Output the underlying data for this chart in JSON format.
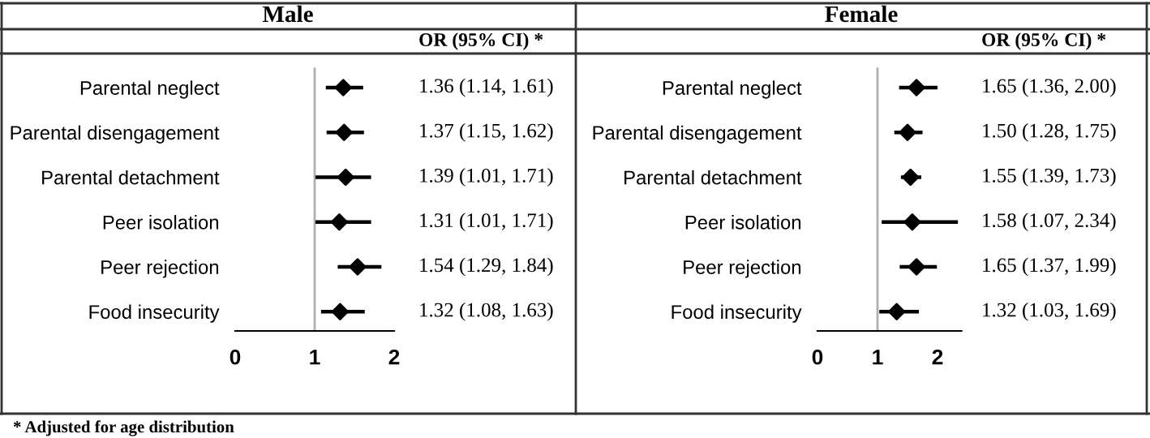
{
  "chart_data": [
    {
      "type": "scatter",
      "title": "Male",
      "orientation": "horizontal",
      "categories": [
        "Parental neglect",
        "Parental disengagement",
        "Parental detachment",
        "Peer isolation",
        "Peer rejection",
        "Food insecurity"
      ],
      "values": [
        1.36,
        1.37,
        1.39,
        1.31,
        1.54,
        1.32
      ],
      "errors": [
        [
          1.14,
          1.61
        ],
        [
          1.15,
          1.62
        ],
        [
          1.01,
          1.71
        ],
        [
          1.01,
          1.71
        ],
        [
          1.29,
          1.84
        ],
        [
          1.08,
          1.63
        ]
      ],
      "value_labels": [
        "1.36 (1.14, 1.61)",
        "1.37 (1.15, 1.62)",
        "1.39 (1.01, 1.71)",
        "1.31 (1.01, 1.71)",
        "1.54 (1.29, 1.84)",
        "1.32 (1.08, 1.63)"
      ],
      "color": "#000000",
      "marker": "diamond",
      "xlim": [
        0,
        2
      ],
      "xticks": [
        0,
        1,
        2
      ],
      "ref_lines": [
        {
          "axis": "x",
          "value": 1,
          "color": "#b0b0b0"
        }
      ],
      "grid": false,
      "annotations": [
        "OR (95% CI) *",
        "* Adjusted for age distribution"
      ]
    },
    {
      "type": "scatter",
      "title": "Female",
      "orientation": "horizontal",
      "categories": [
        "Parental neglect",
        "Parental disengagement",
        "Parental detachment",
        "Peer isolation",
        "Peer rejection",
        "Food insecurity"
      ],
      "values": [
        1.65,
        1.5,
        1.55,
        1.58,
        1.65,
        1.32
      ],
      "errors": [
        [
          1.36,
          2.0
        ],
        [
          1.28,
          1.75
        ],
        [
          1.39,
          1.73
        ],
        [
          1.07,
          2.34
        ],
        [
          1.37,
          1.99
        ],
        [
          1.03,
          1.69
        ]
      ],
      "value_labels": [
        "1.65 (1.36, 2.00)",
        "1.50 (1.28, 1.75)",
        "1.55 (1.39, 1.73)",
        "1.58 (1.07, 2.34)",
        "1.65 (1.37, 1.99)",
        "1.32 (1.03, 1.69)"
      ],
      "color": "#000000",
      "marker": "diamond",
      "xlim": [
        0,
        2.4
      ],
      "xticks": [
        0,
        1,
        2
      ],
      "ref_lines": [
        {
          "axis": "x",
          "value": 1,
          "color": "#b0b0b0"
        }
      ],
      "grid": false,
      "annotations": [
        "OR (95% CI) *"
      ]
    }
  ]
}
